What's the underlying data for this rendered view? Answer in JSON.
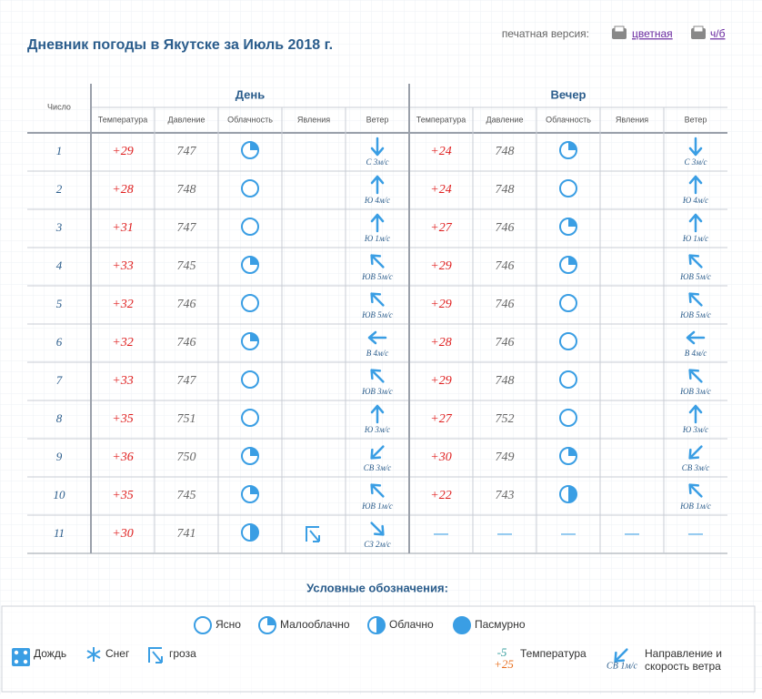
{
  "header": {
    "title": "Дневник погоды в Якутске за Июль 2018 г.",
    "print_label": "печатная версия:",
    "print_color": "цветная",
    "print_bw": "ч/б"
  },
  "table": {
    "col_day": "Число",
    "day": "День",
    "evening": "Вечер",
    "subheaders": [
      "Температура",
      "Давление",
      "Облачность",
      "Явления",
      "Ветер"
    ],
    "rows": [
      {
        "day": "1",
        "d": {
          "temp": "+29",
          "pressure": 747,
          "cloud": "Малооблачно",
          "wind": "С 3м/с"
        },
        "e": {
          "temp": "+24",
          "pressure": 748,
          "cloud": "Малооблачно",
          "wind": "С 3м/с"
        }
      },
      {
        "day": "2",
        "d": {
          "temp": "+28",
          "pressure": 748,
          "cloud": "Ясно",
          "wind": "Ю 4м/с"
        },
        "e": {
          "temp": "+24",
          "pressure": 748,
          "cloud": "Ясно",
          "wind": "Ю 4м/с"
        }
      },
      {
        "day": "3",
        "d": {
          "temp": "+31",
          "pressure": 747,
          "cloud": "Ясно",
          "wind": "Ю 1м/с"
        },
        "e": {
          "temp": "+27",
          "pressure": 746,
          "cloud": "Малооблачно",
          "wind": "Ю 1м/с"
        }
      },
      {
        "day": "4",
        "d": {
          "temp": "+33",
          "pressure": 745,
          "cloud": "Малооблачно",
          "wind": "ЮВ 5м/с"
        },
        "e": {
          "temp": "+29",
          "pressure": 746,
          "cloud": "Малооблачно",
          "wind": "ЮВ 5м/с"
        }
      },
      {
        "day": "5",
        "d": {
          "temp": "+32",
          "pressure": 746,
          "cloud": "Ясно",
          "wind": "ЮВ 5м/с"
        },
        "e": {
          "temp": "+29",
          "pressure": 746,
          "cloud": "Ясно",
          "wind": "ЮВ 5м/с"
        }
      },
      {
        "day": "6",
        "d": {
          "temp": "+32",
          "pressure": 746,
          "cloud": "Малооблачно",
          "wind": "В 4м/с"
        },
        "e": {
          "temp": "+28",
          "pressure": 746,
          "cloud": "Ясно",
          "wind": "В 4м/с"
        }
      },
      {
        "day": "7",
        "d": {
          "temp": "+33",
          "pressure": 747,
          "cloud": "Ясно",
          "wind": "ЮВ 3м/с"
        },
        "e": {
          "temp": "+29",
          "pressure": 748,
          "cloud": "Ясно",
          "wind": "ЮВ 3м/с"
        }
      },
      {
        "day": "8",
        "d": {
          "temp": "+35",
          "pressure": 751,
          "cloud": "Ясно",
          "wind": "Ю 3м/с"
        },
        "e": {
          "temp": "+27",
          "pressure": 752,
          "cloud": "Ясно",
          "wind": "Ю 3м/с"
        }
      },
      {
        "day": "9",
        "d": {
          "temp": "+36",
          "pressure": 750,
          "cloud": "Малооблачно",
          "wind": "СВ 3м/с"
        },
        "e": {
          "temp": "+30",
          "pressure": 749,
          "cloud": "Малооблачно",
          "wind": "СВ 3м/с"
        }
      },
      {
        "day": "10",
        "d": {
          "temp": "+35",
          "pressure": 745,
          "cloud": "Малооблачно",
          "wind": "ЮВ 1м/с"
        },
        "e": {
          "temp": "+22",
          "pressure": 743,
          "cloud": "Облачно",
          "wind": "ЮВ 1м/с"
        }
      },
      {
        "day": "11",
        "d": {
          "temp": "+30",
          "pressure": 741,
          "cloud": "Облачно",
          "phenom": "гроза",
          "wind": "СЗ 2м/с"
        },
        "e": {
          "temp": "—",
          "pressure": "—",
          "cloud": "—",
          "phenom": "—",
          "wind": "—"
        }
      }
    ]
  },
  "legend": {
    "title": "Условные обозначения:",
    "clouds": [
      "Ясно",
      "Малооблачно",
      "Облачно",
      "Пасмурно"
    ],
    "rain": "Дождь",
    "snow": "Снег",
    "storm": "гроза",
    "temp_low": "-5",
    "temp_high": "+25",
    "temp_label": "Температура",
    "wind_sample": "СВ 1м/с",
    "wind_label": [
      "Направление и",
      "скорость ветра"
    ]
  }
}
